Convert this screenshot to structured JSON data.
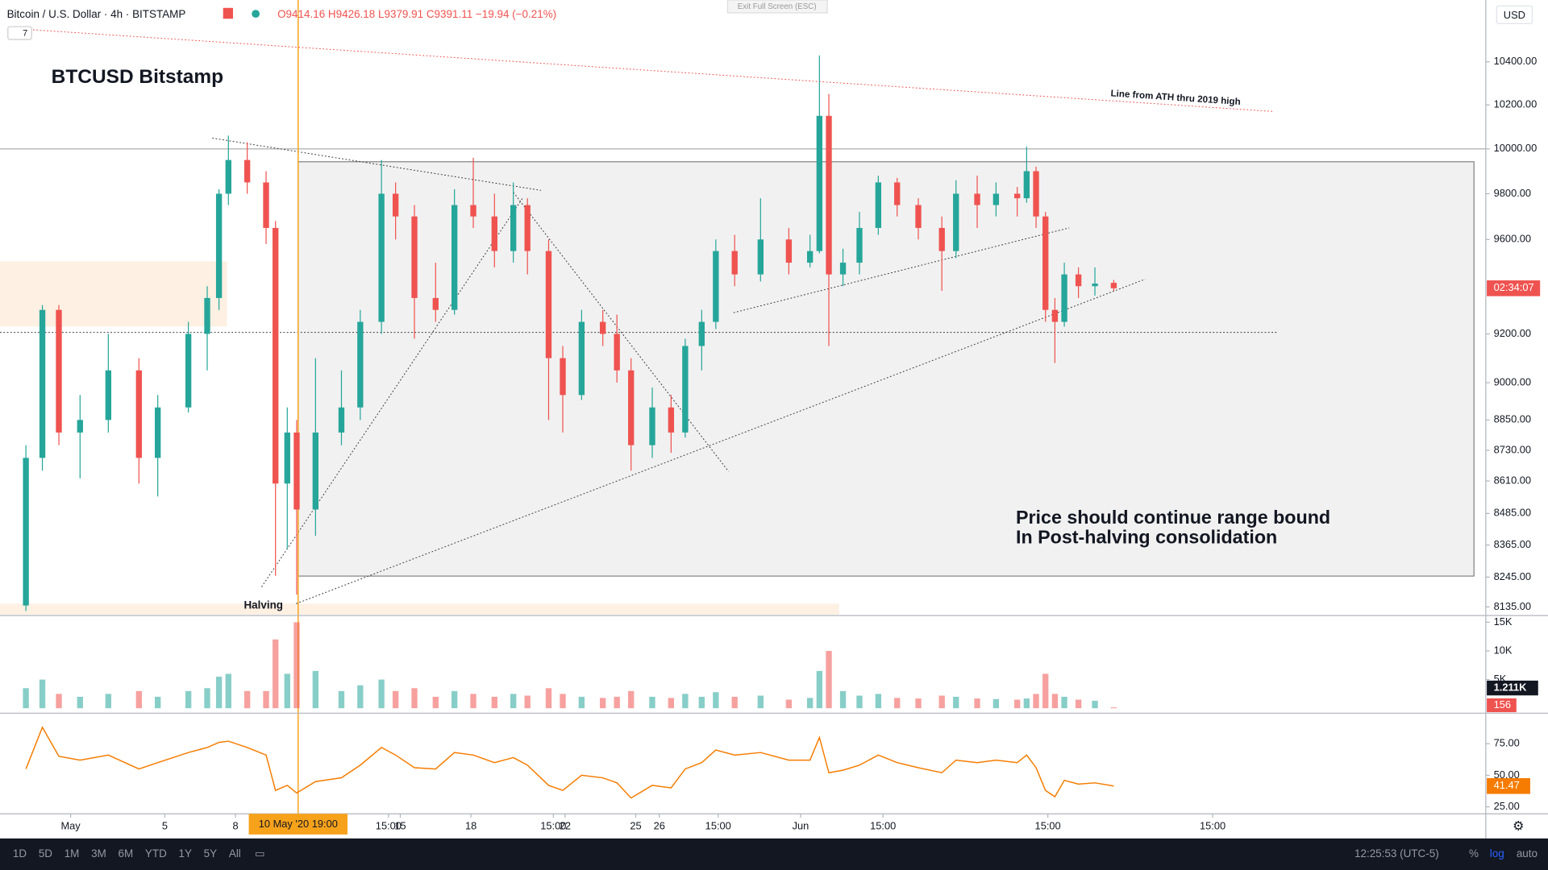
{
  "header": {
    "symbol": "Bitcoin / U.S. Dollar · 4h · BITSTAMP",
    "ohlc": "O9414.16 H9426.18 L9379.91 C9391.11 −19.94 (−0.21%)",
    "indicator_count": "7",
    "exit_fullscreen": "Exit Full Screen (ESC)",
    "currency": "USD"
  },
  "toolbar": {
    "ranges": [
      "1D",
      "5D",
      "1M",
      "3M",
      "6M",
      "YTD",
      "1Y",
      "5Y",
      "All"
    ],
    "clock": "12:25:53 (UTC-5)",
    "percent": "%",
    "log": "log",
    "auto": "auto"
  },
  "chart_data": {
    "type": "candlestick",
    "title": "BTCUSD Bitstamp",
    "log_scale": true,
    "up_color": "#26a69a",
    "down_color": "#ef5350",
    "annotations": [
      "Line from ATH thru 2019 high",
      "Halving",
      "Price should continue range bound",
      "In Post-halving consolidation"
    ],
    "crosshair_label": "10 May '20   19:00",
    "countdown": "02:34:07",
    "x": [
      -0.9,
      -0.2,
      0.5,
      1.4,
      2.6,
      3.9,
      4.7,
      6.0,
      6.8,
      7.3,
      7.7,
      8.5,
      9.3,
      9.7,
      10.2,
      10.6,
      11.4,
      12.5,
      13.3,
      14.2,
      14.8,
      15.6,
      16.5,
      17.3,
      18.1,
      19.0,
      19.8,
      20.4,
      21.3,
      21.9,
      22.7,
      23.6,
      24.2,
      24.8,
      25.7,
      26.5,
      27.1,
      27.8,
      28.4,
      29.2,
      30.3,
      31.5,
      32.4,
      32.8,
      33.2,
      33.8,
      34.5,
      35.3,
      36.1,
      37.0,
      38.0,
      38.6,
      39.5,
      40.3,
      41.2,
      41.6,
      42.0,
      42.4,
      42.8,
      43.2,
      43.8,
      44.5,
      45.3
    ],
    "open": [
      8140,
      8700,
      9300,
      8800,
      8850,
      9050,
      8700,
      8900,
      9200,
      9350,
      9800,
      9950,
      9850,
      9650,
      8600,
      8800,
      8500,
      8800,
      8900,
      9250,
      9800,
      9700,
      9350,
      9300,
      9750,
      9700,
      9550,
      9750,
      9550,
      9100,
      8950,
      9250,
      9200,
      9050,
      8750,
      8900,
      8800,
      9150,
      9250,
      9550,
      9450,
      9600,
      9500,
      9550,
      10150,
      9450,
      9500,
      9650,
      9850,
      9750,
      9650,
      9550,
      9800,
      9750,
      9800,
      9780,
      9900,
      9700,
      9300,
      9250,
      9450,
      9400,
      9414.16
    ],
    "high": [
      8750,
      9320,
      9320,
      8950,
      9200,
      9100,
      8950,
      9250,
      9400,
      9820,
      10060,
      10030,
      9900,
      9680,
      8900,
      8850,
      9100,
      9050,
      9300,
      9950,
      9850,
      9750,
      9500,
      9820,
      9960,
      9800,
      9850,
      9780,
      9600,
      9150,
      9300,
      9300,
      9280,
      9100,
      8980,
      8950,
      9180,
      9300,
      9600,
      9620,
      9780,
      9650,
      9620,
      10430,
      10250,
      9560,
      9720,
      9880,
      9870,
      9780,
      9700,
      9860,
      9880,
      9850,
      9830,
      10010,
      9920,
      9720,
      9350,
      9500,
      9480,
      9480,
      9426.18
    ],
    "low": [
      8120,
      8650,
      8750,
      8620,
      8800,
      8600,
      8550,
      8880,
      9050,
      9300,
      9750,
      9800,
      9580,
      8250,
      8350,
      8180,
      8400,
      8750,
      8850,
      9200,
      9600,
      9180,
      9250,
      9280,
      9650,
      9480,
      9500,
      9450,
      8850,
      8800,
      8930,
      9150,
      9000,
      8650,
      8700,
      8720,
      8780,
      9050,
      9220,
      9400,
      9420,
      9450,
      9480,
      9540,
      9150,
      9400,
      9450,
      9620,
      9700,
      9600,
      9380,
      9520,
      9650,
      9700,
      9700,
      9760,
      9650,
      9250,
      9080,
      9230,
      9350,
      9360,
      9379.91
    ],
    "close": [
      8700,
      9300,
      8800,
      8850,
      9050,
      8700,
      8900,
      9200,
      9350,
      9800,
      9950,
      9850,
      9650,
      8600,
      8800,
      8500,
      8800,
      8900,
      9250,
      9800,
      9700,
      9350,
      9300,
      9750,
      9700,
      9550,
      9750,
      9550,
      9100,
      8950,
      9250,
      9200,
      9050,
      8750,
      8900,
      8800,
      9150,
      9250,
      9550,
      9450,
      9600,
      9500,
      9550,
      10150,
      9450,
      9500,
      9650,
      9850,
      9750,
      9650,
      9550,
      9800,
      9750,
      9800,
      9780,
      9900,
      9700,
      9300,
      9250,
      9450,
      9400,
      9411.05,
      9391.11
    ],
    "xlim": [
      -2,
      61.1
    ],
    "xticks": [
      {
        "value": 1,
        "label": "May"
      },
      5,
      {
        "value": 14.5,
        "label": "15:00"
      },
      18,
      {
        "value": 21.5,
        "label": "15:00"
      },
      25,
      {
        "value": 28.5,
        "label": "15:00"
      },
      {
        "value": 32,
        "label": "Jun"
      },
      {
        "value": 35.5,
        "label": "15:00"
      },
      8,
      {
        "value": 42.5,
        "label": "15:00"
      },
      15,
      {
        "value": 49.5,
        "label": "15:00"
      },
      22,
      26
    ],
    "ylim": [
      8107,
      10694
    ],
    "yticks": [
      {
        "value": 8135,
        "label": "8135.00"
      },
      {
        "value": 8245,
        "label": "8245.00"
      },
      {
        "value": 8365,
        "label": "8365.00"
      },
      {
        "value": 8485,
        "label": "8485.00"
      },
      {
        "value": 8610,
        "label": "8610.00"
      },
      {
        "value": 8730,
        "label": "8730.00"
      },
      {
        "value": 8850,
        "label": "8850.00"
      },
      {
        "value": 9000,
        "label": "9000.00"
      },
      {
        "value": 9200,
        "label": "9200.00"
      },
      {
        "value": 9600,
        "label": "9600.00"
      },
      {
        "value": 9800,
        "label": "9800.00"
      },
      {
        "value": 10000,
        "label": "10000.00"
      },
      {
        "value": 10200,
        "label": "10200.00"
      },
      {
        "value": 10400,
        "label": "10400.00"
      }
    ],
    "volume": {
      "values": [
        3500,
        5000,
        2500,
        2000,
        2500,
        3000,
        2000,
        3000,
        3500,
        5500,
        6000,
        3000,
        3000,
        12000,
        6000,
        15000,
        6500,
        3000,
        4000,
        5000,
        3000,
        3500,
        2000,
        3000,
        2500,
        2000,
        2500,
        2200,
        3500,
        2500,
        2000,
        1800,
        2000,
        3000,
        2000,
        1800,
        2500,
        2000,
        2800,
        2000,
        2200,
        1500,
        1800,
        6500,
        10000,
        3000,
        2200,
        2500,
        1800,
        1700,
        2200,
        2000,
        1700,
        1600,
        1500,
        1700,
        2500,
        6000,
        2500,
        2000,
        1500,
        1300,
        156
      ],
      "ylim": [
        0,
        16000
      ],
      "yticks": [
        {
          "value": 15000,
          "label": "15K"
        },
        {
          "value": 10000,
          "label": "10K"
        },
        {
          "value": 5000,
          "label": "5K"
        }
      ],
      "ma_label": "1.211K"
    },
    "rsi": {
      "color": "#f57c00",
      "values": [
        55,
        88,
        65,
        62,
        66,
        55,
        60,
        68,
        72,
        76,
        77,
        72,
        66,
        38,
        42,
        36,
        45,
        48,
        58,
        72,
        66,
        56,
        55,
        68,
        66,
        60,
        64,
        58,
        42,
        38,
        50,
        48,
        44,
        32,
        42,
        40,
        55,
        60,
        70,
        66,
        68,
        62,
        62,
        80,
        52,
        54,
        58,
        66,
        60,
        56,
        52,
        62,
        60,
        62,
        60,
        66,
        56,
        38,
        33,
        46,
        43,
        44,
        41.47
      ],
      "ylim": [
        19.5,
        98.4
      ],
      "yticks": [
        {
          "value": 75,
          "label": "75.00"
        },
        {
          "value": 50,
          "label": "50.00"
        },
        {
          "value": 25,
          "label": "25.00"
        }
      ]
    }
  }
}
